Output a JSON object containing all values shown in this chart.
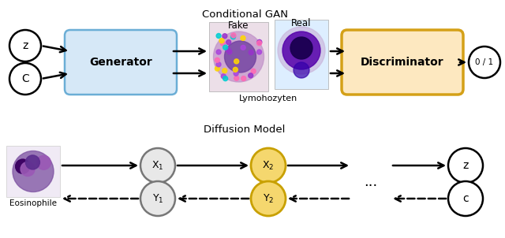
{
  "bg_color": "#ffffff",
  "top_title": "Conditional GAN",
  "bottom_title": "Diffusion Model",
  "generator_label": "Generator",
  "generator_color": "#d6e8f7",
  "generator_edge": "#6baed6",
  "discriminator_label": "Discriminator",
  "discriminator_color": "#fde8c0",
  "discriminator_edge": "#d4a017",
  "output_label": "0 / 1",
  "fake_label": "Fake",
  "real_label": "Real",
  "lymo_label": "Lymohozyten",
  "eosinophile_label": "Eosinophile"
}
